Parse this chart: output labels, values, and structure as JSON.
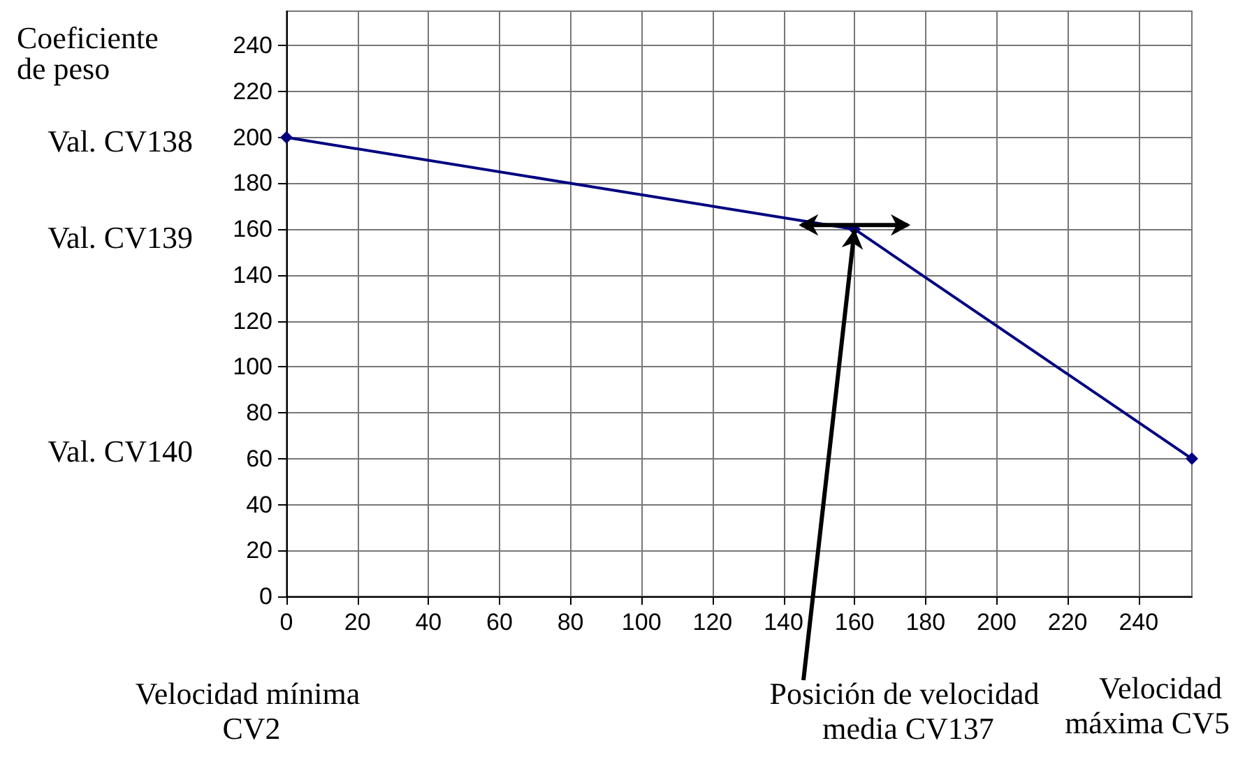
{
  "chart_data": {
    "type": "line",
    "ylabel": "Coeficiente de peso",
    "x": [
      0,
      160,
      255
    ],
    "series": [
      {
        "color": "#000080",
        "values": [
          200,
          160,
          60
        ]
      }
    ],
    "xlim": [
      0,
      255
    ],
    "xticks": [
      0,
      20,
      40,
      60,
      80,
      100,
      120,
      140,
      160,
      180,
      200,
      220,
      240
    ],
    "ylim": [
      0,
      255
    ],
    "yticks": [
      0,
      20,
      40,
      60,
      80,
      100,
      120,
      140,
      160,
      180,
      200,
      220,
      240
    ],
    "grid": true,
    "marker": "diamond",
    "annotations": [
      "Val. CV138",
      "Val. CV139",
      "Val. CV140",
      "Velocidad mínima CV2",
      "Posición de velocidad media CV137",
      "Velocidad máxima CV5"
    ]
  }
}
